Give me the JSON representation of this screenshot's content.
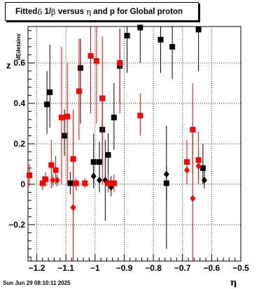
{
  "chart_data": {
    "type": "scatter",
    "title_parts": {
      "prefix": "Fitted ",
      "delta": "δ",
      "middle": " 1/",
      "beta": "β",
      "middle2": " versus ",
      "eta": "η",
      "suffix": " and p for Global proton"
    },
    "ylabel_main": "z",
    "ylabel_sub": "dEdetainv",
    "xlabel": "η",
    "timestamp": "Sun Jun 29 08:10:11 2025",
    "xlim": [
      -1.23,
      -0.5
    ],
    "ylim": [
      -0.38,
      0.78
    ],
    "grid": true,
    "xticks": [
      -1.2,
      -1.1,
      -1.0,
      -0.9,
      -0.8,
      -0.7,
      -0.6,
      -0.5
    ],
    "xtick_labels": [
      "−1.2",
      "−1.1",
      "−1",
      "−0.9",
      "−0.8",
      "−0.7",
      "−0.6",
      "−0.5"
    ],
    "yticks": [
      -0.2,
      0.0,
      0.2,
      0.4,
      0.6
    ],
    "ytick_labels": [
      "−0.2",
      "0",
      "0.2",
      "0.4",
      "0.6"
    ],
    "series": [
      {
        "color": "#000000",
        "marker": "square",
        "points": [
          {
            "x": -1.165,
            "y": 0.395,
            "lo": 0.25,
            "hi": 0.56
          },
          {
            "x": -1.155,
            "y": 0.455,
            "lo": 0.28,
            "hi": 0.69
          },
          {
            "x": -1.105,
            "y": 0.24,
            "lo": 0.14,
            "hi": 0.37
          },
          {
            "x": -1.085,
            "y": 0.005,
            "lo": -0.05,
            "hi": 0.06
          },
          {
            "x": -1.075,
            "y": 0.005,
            "lo": -0.04,
            "hi": 0.05
          },
          {
            "x": -1.05,
            "y": 0.575,
            "lo": 0.3,
            "hi": 0.72
          },
          {
            "x": -1.005,
            "y": 0.11,
            "lo": 0.0,
            "hi": 0.25
          },
          {
            "x": -0.985,
            "y": 0.11,
            "lo": 0.03,
            "hi": 0.21
          },
          {
            "x": -0.975,
            "y": 0.27,
            "lo": 0.1,
            "hi": 0.42
          },
          {
            "x": -0.955,
            "y": 0.145,
            "lo": 0.04,
            "hi": 0.25
          },
          {
            "x": -0.935,
            "y": 0.33,
            "lo": 0.17,
            "hi": 0.5
          },
          {
            "x": -0.915,
            "y": 0.585,
            "lo": 0.4,
            "hi": 0.77
          },
          {
            "x": -0.89,
            "y": 0.735,
            "lo": 0.55,
            "hi": 0.78
          },
          {
            "x": -0.845,
            "y": 0.775,
            "lo": 0.6,
            "hi": 0.78
          },
          {
            "x": -0.775,
            "y": 0.715,
            "lo": 0.55,
            "hi": 0.78
          },
          {
            "x": -0.755,
            "y": 0.005,
            "lo": -0.08,
            "hi": 0.09
          },
          {
            "x": -0.735,
            "y": 0.68,
            "lo": 0.52,
            "hi": 0.78
          },
          {
            "x": -0.645,
            "y": 0.765,
            "lo": 0.56,
            "hi": 0.78
          },
          {
            "x": -0.63,
            "y": 0.08,
            "lo": 0.0,
            "hi": 0.2
          }
        ]
      },
      {
        "color": "#000000",
        "marker": "diamond",
        "points": [
          {
            "x": -1.005,
            "y": 0.04,
            "lo": -0.02,
            "hi": 0.09
          },
          {
            "x": -0.985,
            "y": 0.02,
            "lo": -0.04,
            "hi": 0.1
          },
          {
            "x": -0.965,
            "y": 0.02,
            "lo": -0.18,
            "hi": 0.22
          },
          {
            "x": -0.945,
            "y": -0.015,
            "lo": -0.06,
            "hi": 0.04
          },
          {
            "x": -0.755,
            "y": 0.05,
            "lo": -0.32,
            "hi": 0.29
          },
          {
            "x": -0.625,
            "y": 0.02,
            "lo": -0.02,
            "hi": 0.07
          }
        ]
      },
      {
        "color": "#ff0000",
        "marker": "square",
        "points": [
          {
            "x": -1.225,
            "y": 0.045,
            "lo": -0.01,
            "hi": 0.1
          },
          {
            "x": -1.18,
            "y": 0.005,
            "lo": -0.03,
            "hi": 0.04
          },
          {
            "x": -1.17,
            "y": 0.025,
            "lo": -0.01,
            "hi": 0.06
          },
          {
            "x": -1.15,
            "y": 0.095,
            "lo": -0.02,
            "hi": 0.22
          },
          {
            "x": -1.135,
            "y": 0.07,
            "lo": 0.0,
            "hi": 0.14
          },
          {
            "x": -1.115,
            "y": 0.33,
            "lo": 0.0,
            "hi": 0.68
          },
          {
            "x": -1.095,
            "y": 0.335,
            "lo": 0.0,
            "hi": 0.6
          },
          {
            "x": -1.075,
            "y": 0.125,
            "lo": -0.12,
            "hi": 0.37
          },
          {
            "x": -1.065,
            "y": 0.005,
            "lo": -0.03,
            "hi": 0.03
          },
          {
            "x": -1.055,
            "y": 0.46,
            "lo": 0.22,
            "hi": 0.72
          },
          {
            "x": -1.035,
            "y": 0.005,
            "lo": -0.02,
            "hi": 0.03
          },
          {
            "x": -1.015,
            "y": 0.635,
            "lo": 0.35,
            "hi": 0.78
          },
          {
            "x": -0.995,
            "y": 0.61,
            "lo": 0.3,
            "hi": 0.78
          },
          {
            "x": -0.975,
            "y": 0.425,
            "lo": 0.0,
            "hi": 0.73
          },
          {
            "x": -0.955,
            "y": 0.005,
            "lo": -0.04,
            "hi": 0.05
          },
          {
            "x": -0.935,
            "y": 0.005,
            "lo": -0.04,
            "hi": 0.05
          },
          {
            "x": -0.915,
            "y": 0.6,
            "lo": 0.35,
            "hi": 0.75
          },
          {
            "x": -0.845,
            "y": 0.34,
            "lo": 0.24,
            "hi": 0.45
          },
          {
            "x": -0.685,
            "y": 0.11,
            "lo": 0.0,
            "hi": 0.22
          },
          {
            "x": -0.665,
            "y": 0.27,
            "lo": 0.05,
            "hi": 0.5
          },
          {
            "x": -0.645,
            "y": 0.12,
            "lo": 0.0,
            "hi": 0.26
          }
        ]
      },
      {
        "color": "#ff0000",
        "marker": "diamond",
        "points": [
          {
            "x": -1.145,
            "y": 0.02,
            "lo": -0.01,
            "hi": 0.05
          },
          {
            "x": -1.13,
            "y": 0.02,
            "lo": -0.01,
            "hi": 0.05
          },
          {
            "x": -1.075,
            "y": -0.115,
            "lo": -0.38,
            "hi": 0.14
          },
          {
            "x": -0.685,
            "y": 0.07,
            "lo": 0.0,
            "hi": 0.14
          },
          {
            "x": -0.665,
            "y": -0.07,
            "lo": -0.38,
            "hi": 0.25
          },
          {
            "x": -0.645,
            "y": 0.09,
            "lo": 0.03,
            "hi": 0.16
          }
        ]
      }
    ]
  }
}
